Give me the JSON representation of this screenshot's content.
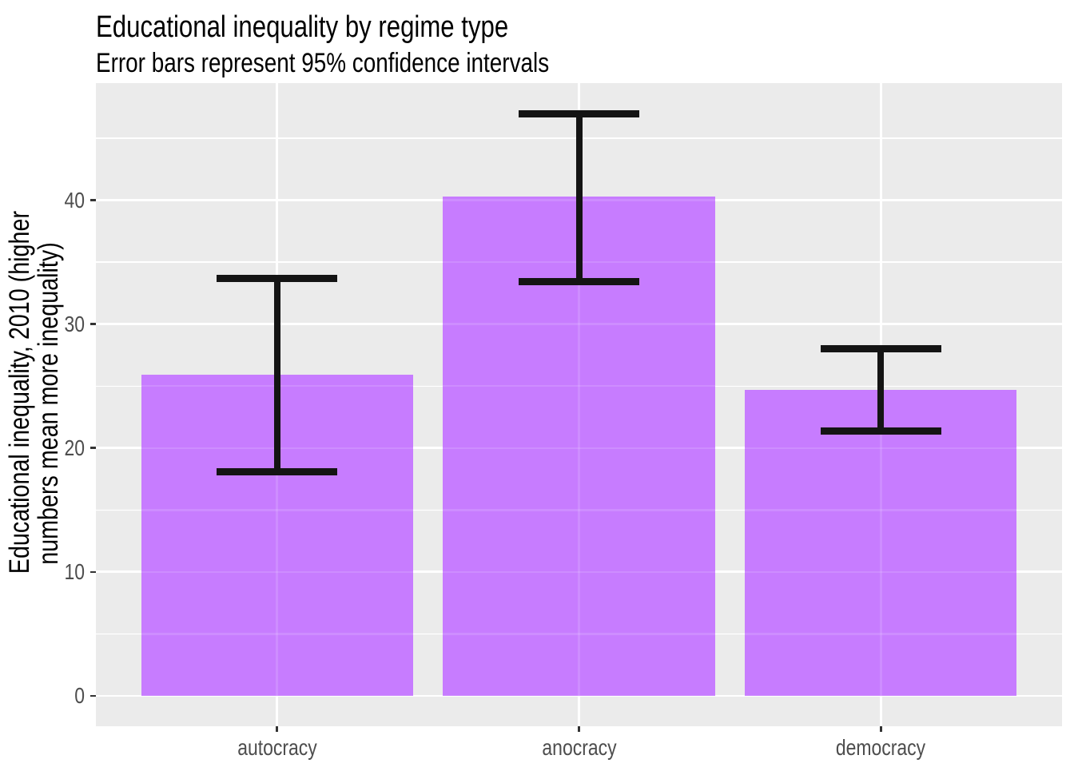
{
  "chart_data": {
    "type": "bar",
    "title": "Educational inequality by regime type",
    "subtitle": "Error bars represent 95% confidence intervals",
    "ylabel": "Educational inequality, 2010 (higher numbers mean more inequality)",
    "ylabel_lines": [
      "Educational inequality, 2010 (higher",
      "numbers mean more inequality)"
    ],
    "xlabel": "",
    "categories": [
      "autocracy",
      "anocracy",
      "democracy"
    ],
    "values": [
      25.9,
      40.3,
      24.7
    ],
    "error_bars": {
      "upper": [
        33.7,
        47.0,
        28.0
      ],
      "lower": [
        18.1,
        33.4,
        21.4
      ]
    },
    "yticks": [
      0,
      10,
      20,
      30,
      40
    ],
    "yticks_minor": [
      5,
      15,
      25,
      35,
      45
    ],
    "ylim": [
      -2.45,
      49.45
    ],
    "x_positions": [
      1,
      2,
      3
    ],
    "xlim": [
      0.4,
      3.6
    ],
    "bar_width": 0.9,
    "cap_width": 0.4,
    "grid": "major-and-minor, white on gray panel",
    "legend": false,
    "colors": {
      "bar_fill": "#C77CFF",
      "error_bar": "#141414",
      "panel_bg": "#EBEBEB",
      "gridline": "#FFFFFF",
      "axis_text": "#4D4D4D",
      "tick_mark": "#333333",
      "title_text": "#000000",
      "background": "#FFFFFF"
    }
  }
}
